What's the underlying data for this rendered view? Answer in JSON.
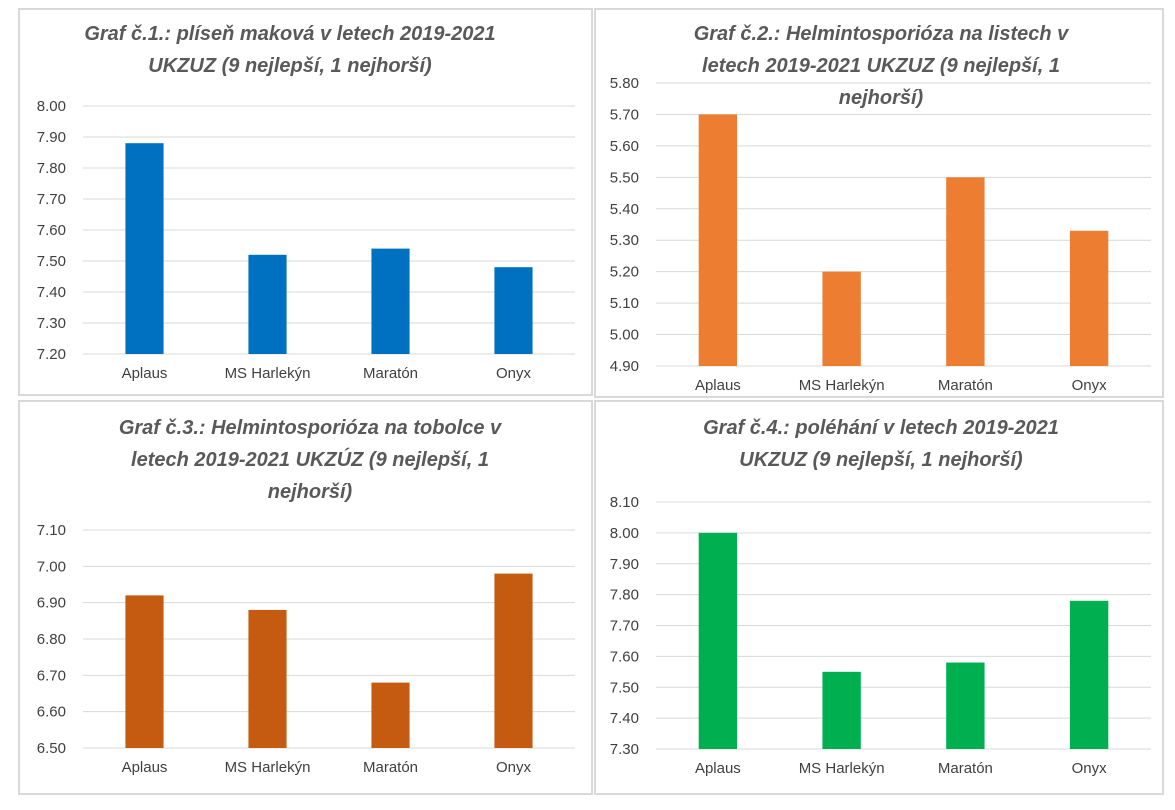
{
  "chart_data": [
    {
      "type": "bar",
      "title": "Graf č.1.: plíseň maková v letech 2019-2021 UKZUZ (9 nejlepší, 1 nejhorší)",
      "title_lines": [
        "Graf č.1.: plíseň maková v letech 2019-2021",
        "UKZUZ (9 nejlepší, 1 nejhorší)"
      ],
      "categories": [
        "Aplaus",
        "MS Harlekýn",
        "Maratón",
        "Onyx"
      ],
      "values": [
        7.88,
        7.52,
        7.54,
        7.48
      ],
      "ylim": [
        7.2,
        8.0
      ],
      "yticks": [
        "7.20",
        "7.30",
        "7.40",
        "7.50",
        "7.60",
        "7.70",
        "7.80",
        "7.90",
        "8.00"
      ],
      "color": "#0070c0",
      "grid": true,
      "legend": "none"
    },
    {
      "type": "bar",
      "title": "Graf č.2.: Helmintosporióza na listech v letech 2019-2021 UKZUZ (9 nejlepší, 1 nejhorší)",
      "title_lines": [
        "Graf č.2.: Helmintosporióza na listech v",
        "letech 2019-2021 UKZUZ (9 nejlepší, 1",
        "nejhorší)"
      ],
      "categories": [
        "Aplaus",
        "MS Harlekýn",
        "Maratón",
        "Onyx"
      ],
      "values": [
        5.7,
        5.2,
        5.5,
        5.33
      ],
      "ylim": [
        4.9,
        5.8
      ],
      "yticks": [
        "4.90",
        "5.00",
        "5.10",
        "5.20",
        "5.30",
        "5.40",
        "5.50",
        "5.60",
        "5.70",
        "5.80"
      ],
      "color": "#ed7d31",
      "grid": true,
      "legend": "none"
    },
    {
      "type": "bar",
      "title": "Graf č.3.: Helmintosporióza na tobolce v letech 2019-2021 UKZÚZ (9 nejlepší, 1 nejhorší)",
      "title_lines": [
        "Graf č.3.: Helmintosporióza na tobolce v",
        "letech 2019-2021 UKZÚZ (9 nejlepší, 1",
        "nejhorší)"
      ],
      "categories": [
        "Aplaus",
        "MS Harlekýn",
        "Maratón",
        "Onyx"
      ],
      "values": [
        6.92,
        6.88,
        6.68,
        6.98
      ],
      "ylim": [
        6.5,
        7.1
      ],
      "yticks": [
        "6.50",
        "6.60",
        "6.70",
        "6.80",
        "6.90",
        "7.00",
        "7.10"
      ],
      "color": "#c55a11",
      "grid": true,
      "legend": "none"
    },
    {
      "type": "bar",
      "title": "Graf č.4.: poléhání v letech 2019-2021 UKZUZ (9 nejlepší, 1 nejhorší)",
      "title_lines": [
        "Graf č.4.: poléhání v letech 2019-2021",
        "UKZUZ (9 nejlepší, 1 nejhorší)"
      ],
      "categories": [
        "Aplaus",
        "MS Harlekýn",
        "Maratón",
        "Onyx"
      ],
      "values": [
        8.0,
        7.55,
        7.58,
        7.78
      ],
      "ylim": [
        7.3,
        8.1
      ],
      "yticks": [
        "7.30",
        "7.40",
        "7.50",
        "7.60",
        "7.70",
        "7.80",
        "7.90",
        "8.00",
        "8.10"
      ],
      "color": "#00b050",
      "grid": true,
      "legend": "none"
    }
  ]
}
